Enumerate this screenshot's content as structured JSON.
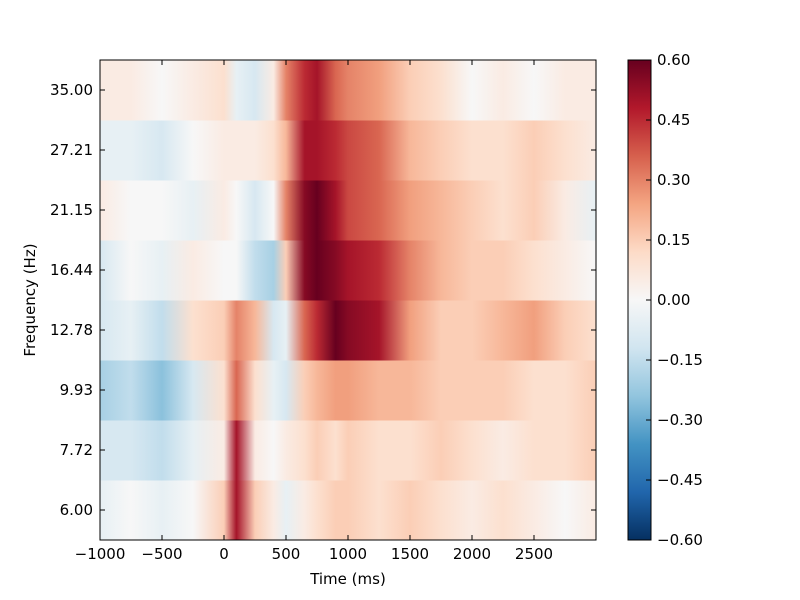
{
  "chart_data": {
    "type": "heatmap",
    "title": "",
    "xlabel": "Time (ms)",
    "ylabel": "Frequency (Hz)",
    "xlim": [
      -1000,
      3000
    ],
    "x_ticks": [
      -1000,
      -500,
      0,
      500,
      1000,
      1500,
      2000,
      2500
    ],
    "x_tick_labels": [
      "−1000",
      "−500",
      "0",
      "500",
      "1000",
      "1500",
      "2000",
      "2500"
    ],
    "frequencies": [
      6.0,
      7.72,
      9.93,
      12.78,
      16.44,
      21.15,
      27.21,
      35.0
    ],
    "y_tick_labels": [
      "6.00",
      "7.72",
      "9.93",
      "12.78",
      "16.44",
      "21.15",
      "27.21",
      "35.00"
    ],
    "colormap": "RdBu_r",
    "colorbar": {
      "vmin": -0.6,
      "vmax": 0.6,
      "ticks": [
        -0.6,
        -0.45,
        -0.3,
        -0.15,
        0.0,
        0.15,
        0.3,
        0.45,
        0.6
      ],
      "tick_labels": [
        "−0.60",
        "−0.45",
        "−0.30",
        "−0.15",
        "0.00",
        "0.15",
        "0.30",
        "0.45",
        "0.60"
      ],
      "colors": [
        "#053061",
        "#2166ac",
        "#4393c3",
        "#92c5de",
        "#d1e5f0",
        "#f7f7f7",
        "#fddbc7",
        "#f4a582",
        "#d6604d",
        "#b2182b",
        "#67001f"
      ]
    },
    "time_points": [
      -1000,
      -750,
      -500,
      -250,
      0,
      100,
      250,
      400,
      500,
      650,
      750,
      900,
      1000,
      1250,
      1500,
      1750,
      2000,
      2250,
      2500,
      2750,
      3000
    ],
    "values": [
      [
        -0.05,
        0.0,
        -0.05,
        0.0,
        0.15,
        0.5,
        0.15,
        0.05,
        -0.05,
        0.05,
        0.1,
        0.15,
        0.15,
        0.1,
        0.15,
        0.1,
        0.05,
        0.1,
        0.05,
        0.0,
        0.05
      ],
      [
        -0.1,
        -0.1,
        -0.15,
        -0.05,
        0.05,
        0.5,
        0.05,
        0.0,
        0.05,
        0.1,
        0.15,
        0.1,
        0.15,
        0.1,
        0.1,
        0.15,
        0.1,
        0.05,
        0.1,
        0.1,
        0.15
      ],
      [
        -0.2,
        -0.15,
        -0.25,
        -0.1,
        0.1,
        0.35,
        0.1,
        -0.05,
        -0.1,
        0.15,
        0.2,
        0.25,
        0.25,
        0.2,
        0.2,
        0.15,
        0.15,
        0.15,
        0.1,
        0.1,
        0.15
      ],
      [
        -0.1,
        -0.05,
        -0.15,
        0.1,
        0.15,
        0.3,
        0.2,
        -0.1,
        -0.05,
        0.35,
        0.45,
        0.6,
        0.55,
        0.5,
        0.25,
        0.15,
        0.15,
        0.2,
        0.25,
        0.15,
        0.1
      ],
      [
        -0.1,
        0.0,
        -0.05,
        0.05,
        0.0,
        0.0,
        -0.15,
        -0.2,
        0.15,
        0.55,
        0.6,
        0.55,
        0.5,
        0.45,
        0.3,
        0.2,
        0.15,
        0.15,
        0.1,
        0.05,
        0.0
      ],
      [
        0.05,
        0.0,
        0.0,
        -0.05,
        0.05,
        0.0,
        -0.1,
        0.0,
        0.3,
        0.55,
        0.6,
        0.5,
        0.4,
        0.35,
        0.25,
        0.2,
        0.15,
        0.1,
        0.15,
        0.05,
        -0.05
      ],
      [
        -0.05,
        -0.05,
        -0.1,
        0.0,
        0.05,
        0.05,
        0.05,
        0.1,
        0.2,
        0.5,
        0.5,
        0.45,
        0.4,
        0.35,
        0.2,
        0.15,
        0.1,
        0.1,
        0.15,
        0.1,
        0.05
      ],
      [
        0.05,
        0.05,
        0.0,
        0.05,
        0.1,
        -0.05,
        -0.1,
        0.05,
        0.3,
        0.45,
        0.5,
        0.35,
        0.3,
        0.25,
        0.15,
        0.1,
        0.0,
        0.05,
        0.0,
        0.05,
        0.05
      ]
    ]
  }
}
